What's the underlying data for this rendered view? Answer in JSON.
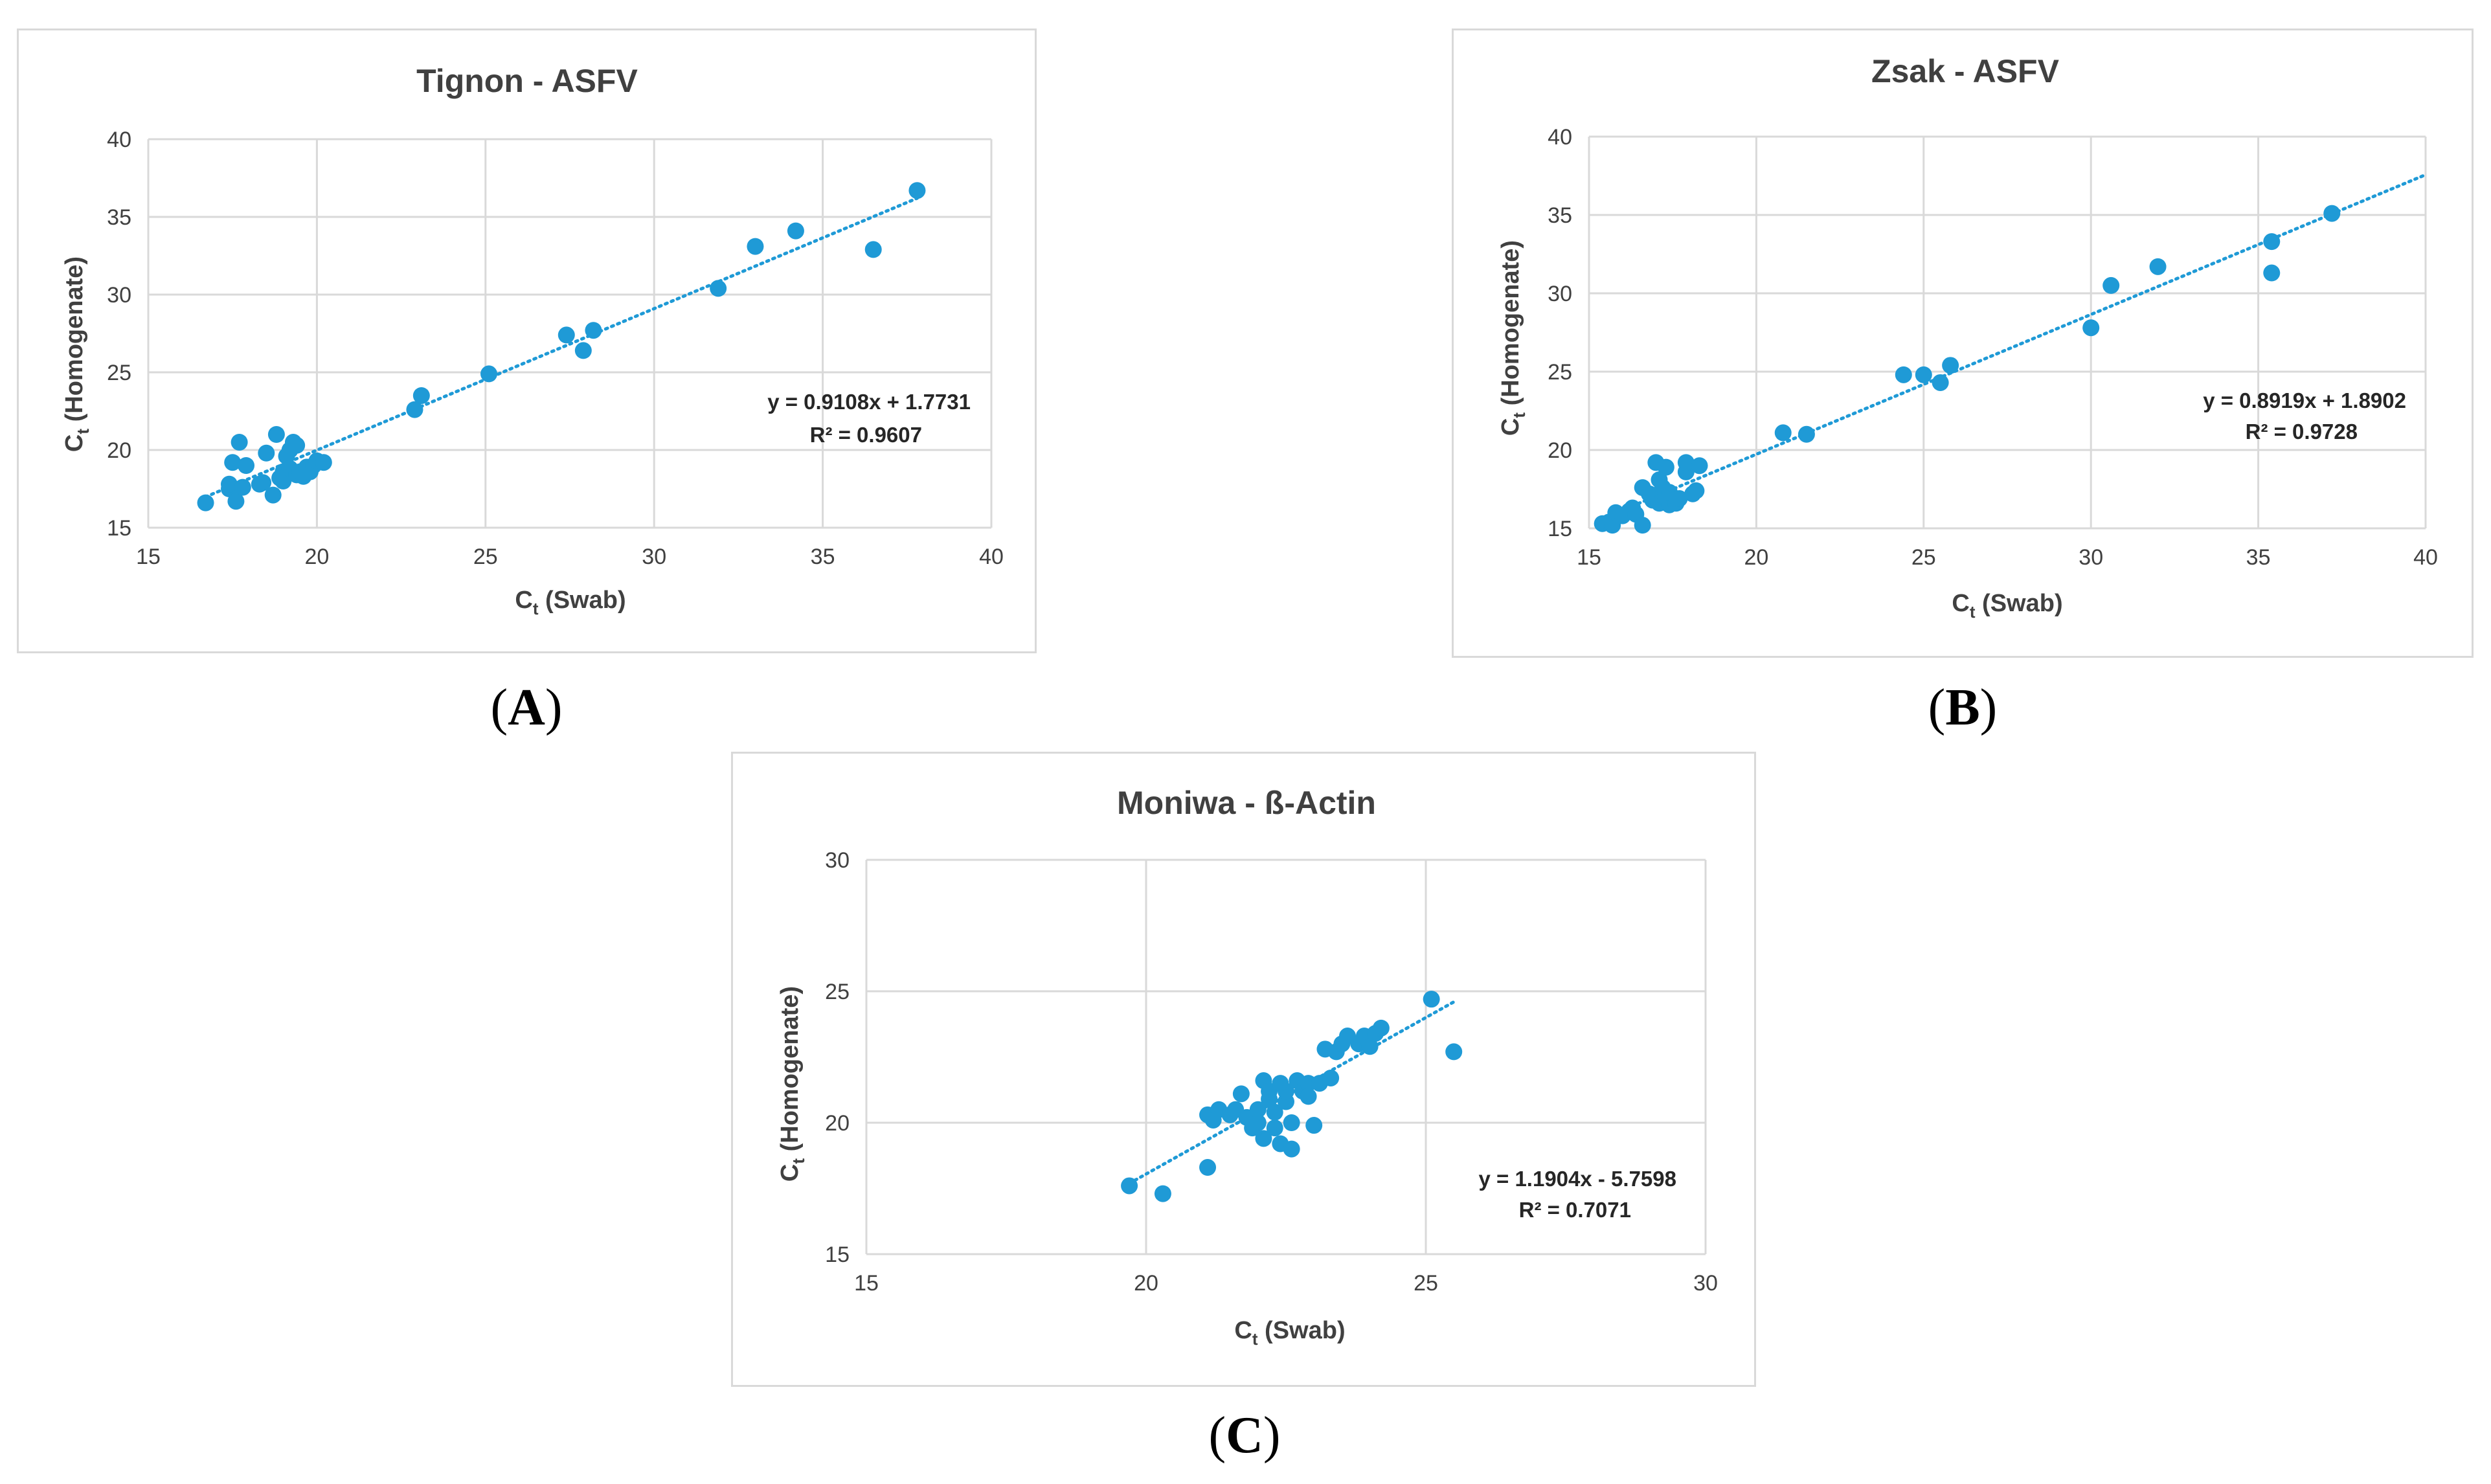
{
  "panel_labels": [
    "A",
    "B",
    "C"
  ],
  "colors": {
    "point": "#1f9ad6",
    "trend": "#1f9ad6",
    "grid": "#d9d9d9",
    "text": "#404040"
  },
  "chart_data": [
    {
      "type": "scatter",
      "panel": "A",
      "title": "Tignon - ASFV",
      "xlabel_main": "C",
      "xlabel_sub": "t",
      "xlabel_rest": " (Swab)",
      "ylabel_main": "C",
      "ylabel_sub": "t",
      "ylabel_rest": " (Homogenate)",
      "xlim": [
        15,
        40
      ],
      "ylim": [
        15,
        40
      ],
      "xticks": [
        15,
        20,
        25,
        30,
        35,
        40
      ],
      "yticks": [
        15,
        20,
        25,
        30,
        35,
        40
      ],
      "equation": "y = 0.9108x + 1.7731",
      "r_squared": "R² = 0.9607",
      "trendline": {
        "slope": 0.9108,
        "intercept": 1.7731,
        "x_range": [
          16.7,
          37.8
        ]
      },
      "points": [
        [
          16.7,
          16.6
        ],
        [
          17.4,
          17.5
        ],
        [
          17.4,
          17.8
        ],
        [
          17.5,
          19.2
        ],
        [
          17.6,
          16.7
        ],
        [
          17.7,
          20.5
        ],
        [
          17.8,
          17.6
        ],
        [
          17.9,
          19.0
        ],
        [
          18.3,
          17.8
        ],
        [
          18.4,
          17.9
        ],
        [
          18.5,
          19.8
        ],
        [
          18.7,
          17.1
        ],
        [
          18.8,
          21.0
        ],
        [
          18.9,
          18.2
        ],
        [
          19.0,
          18.6
        ],
        [
          19.0,
          18.0
        ],
        [
          19.1,
          19.6
        ],
        [
          19.2,
          20.0
        ],
        [
          19.2,
          18.8
        ],
        [
          19.3,
          20.5
        ],
        [
          19.4,
          18.4
        ],
        [
          19.4,
          20.3
        ],
        [
          19.5,
          18.6
        ],
        [
          19.6,
          18.3
        ],
        [
          19.7,
          18.9
        ],
        [
          19.8,
          18.6
        ],
        [
          19.9,
          19.0
        ],
        [
          20.0,
          19.3
        ],
        [
          20.2,
          19.2
        ],
        [
          22.9,
          22.6
        ],
        [
          23.1,
          23.5
        ],
        [
          25.1,
          24.9
        ],
        [
          27.4,
          27.4
        ],
        [
          27.9,
          26.4
        ],
        [
          28.2,
          27.7
        ],
        [
          31.9,
          30.4
        ],
        [
          33.0,
          33.1
        ],
        [
          34.2,
          34.1
        ],
        [
          36.5,
          32.9
        ],
        [
          37.8,
          36.7
        ]
      ]
    },
    {
      "type": "scatter",
      "panel": "B",
      "title": "Zsak - ASFV",
      "xlabel_main": "C",
      "xlabel_sub": "t",
      "xlabel_rest": " (Swab)",
      "ylabel_main": "C",
      "ylabel_sub": "t",
      "ylabel_rest": " (Homogenate)",
      "xlim": [
        15,
        40
      ],
      "ylim": [
        15,
        40
      ],
      "xticks": [
        15,
        20,
        25,
        30,
        35,
        40
      ],
      "yticks": [
        15,
        20,
        25,
        30,
        35,
        40
      ],
      "equation": "y = 0.8919x + 1.8902",
      "r_squared": "R² = 0.9728",
      "trendline": {
        "slope": 0.8919,
        "intercept": 1.8902,
        "x_range": [
          15.4,
          40.0
        ]
      },
      "points": [
        [
          15.4,
          15.3
        ],
        [
          15.6,
          15.4
        ],
        [
          15.7,
          15.2
        ],
        [
          15.8,
          16.0
        ],
        [
          16.0,
          15.8
        ],
        [
          16.2,
          16.1
        ],
        [
          16.3,
          16.3
        ],
        [
          16.4,
          15.9
        ],
        [
          16.6,
          15.2
        ],
        [
          16.6,
          17.6
        ],
        [
          16.8,
          17.2
        ],
        [
          16.9,
          16.8
        ],
        [
          17.0,
          19.2
        ],
        [
          17.0,
          17.0
        ],
        [
          17.1,
          16.6
        ],
        [
          17.1,
          18.1
        ],
        [
          17.2,
          17.6
        ],
        [
          17.3,
          18.9
        ],
        [
          17.3,
          16.9
        ],
        [
          17.4,
          16.5
        ],
        [
          17.4,
          17.3
        ],
        [
          17.6,
          16.6
        ],
        [
          17.7,
          16.9
        ],
        [
          17.9,
          18.6
        ],
        [
          17.9,
          19.2
        ],
        [
          18.1,
          17.2
        ],
        [
          18.2,
          17.4
        ],
        [
          18.3,
          19.0
        ],
        [
          20.8,
          21.1
        ],
        [
          21.5,
          21.0
        ],
        [
          24.4,
          24.8
        ],
        [
          25.0,
          24.8
        ],
        [
          25.5,
          24.3
        ],
        [
          25.8,
          25.4
        ],
        [
          30.0,
          27.8
        ],
        [
          30.6,
          30.5
        ],
        [
          32.0,
          31.7
        ],
        [
          35.4,
          31.3
        ],
        [
          35.4,
          33.3
        ],
        [
          37.2,
          35.1
        ]
      ]
    },
    {
      "type": "scatter",
      "panel": "C",
      "title": "Moniwa - ß-Actin",
      "xlabel_main": "C",
      "xlabel_sub": "t",
      "xlabel_rest": " (Swab)",
      "ylabel_main": "C",
      "ylabel_sub": "t",
      "ylabel_rest": " (Homogenate)",
      "xlim": [
        15,
        30
      ],
      "ylim": [
        15,
        30
      ],
      "xticks": [
        15,
        20,
        25,
        30
      ],
      "yticks": [
        15,
        20,
        25,
        30
      ],
      "equation": "y = 1.1904x - 5.7598",
      "r_squared": "R² = 0.7071",
      "trendline": {
        "slope": 1.1904,
        "intercept": -5.7598,
        "x_range": [
          19.7,
          25.5
        ]
      },
      "points": [
        [
          19.7,
          17.6
        ],
        [
          20.3,
          17.3
        ],
        [
          21.1,
          18.3
        ],
        [
          21.1,
          20.3
        ],
        [
          21.2,
          20.1
        ],
        [
          21.3,
          20.5
        ],
        [
          21.5,
          20.3
        ],
        [
          21.6,
          20.5
        ],
        [
          21.7,
          21.1
        ],
        [
          21.8,
          20.2
        ],
        [
          21.9,
          19.8
        ],
        [
          22.0,
          20.0
        ],
        [
          22.0,
          20.5
        ],
        [
          22.1,
          21.6
        ],
        [
          22.1,
          19.4
        ],
        [
          22.2,
          20.9
        ],
        [
          22.2,
          21.2
        ],
        [
          22.3,
          19.8
        ],
        [
          22.3,
          20.4
        ],
        [
          22.4,
          21.5
        ],
        [
          22.4,
          19.2
        ],
        [
          22.5,
          20.8
        ],
        [
          22.5,
          21.2
        ],
        [
          22.6,
          20.0
        ],
        [
          22.6,
          19.0
        ],
        [
          22.7,
          21.6
        ],
        [
          22.8,
          21.2
        ],
        [
          22.9,
          21.5
        ],
        [
          22.9,
          21.0
        ],
        [
          23.0,
          19.9
        ],
        [
          23.1,
          21.5
        ],
        [
          23.2,
          22.8
        ],
        [
          23.3,
          21.7
        ],
        [
          23.4,
          22.7
        ],
        [
          23.5,
          23.0
        ],
        [
          23.6,
          23.3
        ],
        [
          23.8,
          23.0
        ],
        [
          23.9,
          23.3
        ],
        [
          24.0,
          22.9
        ],
        [
          24.1,
          23.4
        ],
        [
          24.2,
          23.6
        ],
        [
          25.1,
          24.7
        ],
        [
          25.5,
          22.7
        ]
      ]
    }
  ]
}
